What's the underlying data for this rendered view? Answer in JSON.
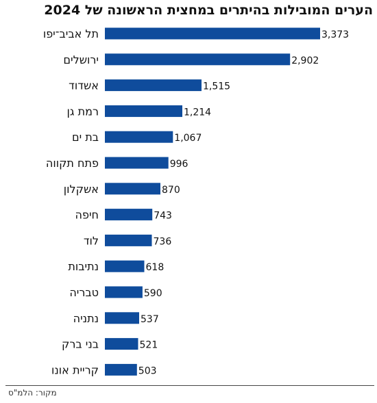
{
  "chart_data": {
    "type": "bar",
    "orientation": "horizontal",
    "title": "הערים המובילות בהיתרים במחצית הראשונה של 2024",
    "categories": [
      "תל אביב־יפו",
      "ירושלים",
      "אשדוד",
      "רמת גן",
      "בת ים",
      "פתח תקווה",
      "אשקלון",
      "חיפה",
      "לוד",
      "נתיבות",
      "טבריה",
      "נתניה",
      "בני ברק",
      "קריית אונו"
    ],
    "values": [
      3373,
      2902,
      1515,
      1214,
      1067,
      996,
      870,
      743,
      736,
      618,
      590,
      537,
      521,
      503
    ],
    "value_labels": [
      "3,373",
      "2,902",
      "1,515",
      "1,214",
      "1,067",
      "996",
      "870",
      "743",
      "736",
      "618",
      "590",
      "537",
      "521",
      "503"
    ],
    "bar_color": "#0f4c9c",
    "grid": false,
    "legend": "none",
    "xlim": [
      0,
      3373
    ]
  },
  "source": "מקור: הלמ\"ס"
}
